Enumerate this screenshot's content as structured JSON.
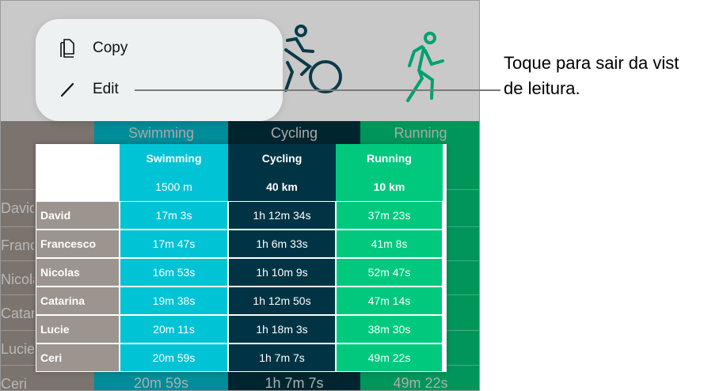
{
  "menu": {
    "items": [
      {
        "label": "Copy",
        "icon": "copy-icon"
      },
      {
        "label": "Edit",
        "icon": "pencil-icon"
      }
    ]
  },
  "callout": {
    "line1": "Toque para sair da vist",
    "line2": "de leitura."
  },
  "icons": {
    "cycling": "cyclist-icon",
    "running": "runner-icon"
  },
  "colors": {
    "swimming": "#00c3d6",
    "cycling": "#003444",
    "running": "#00c97e",
    "names": "#9c958f"
  },
  "table": {
    "headers": [
      {
        "sport": "Swimming",
        "distance": "1500 m"
      },
      {
        "sport": "Cycling",
        "distance": "40 km"
      },
      {
        "sport": "Running",
        "distance": "10 km"
      }
    ],
    "rows": [
      {
        "name": "David",
        "values": [
          "17m 3s",
          "1h 12m 34s",
          "37m 23s"
        ]
      },
      {
        "name": "Francesco",
        "values": [
          "17m 47s",
          "1h 6m 33s",
          "41m 8s"
        ]
      },
      {
        "name": "Nicolas",
        "values": [
          "16m 53s",
          "1h 10m 9s",
          "52m 47s"
        ]
      },
      {
        "name": "Catarina",
        "values": [
          "19m 38s",
          "1h 12m 50s",
          "47m 14s"
        ]
      },
      {
        "name": "Lucie",
        "values": [
          "20m 11s",
          "1h 18m 3s",
          "38m 30s"
        ]
      },
      {
        "name": "Ceri",
        "values": [
          "20m 59s",
          "1h 7m 7s",
          "49m 22s"
        ]
      }
    ]
  }
}
